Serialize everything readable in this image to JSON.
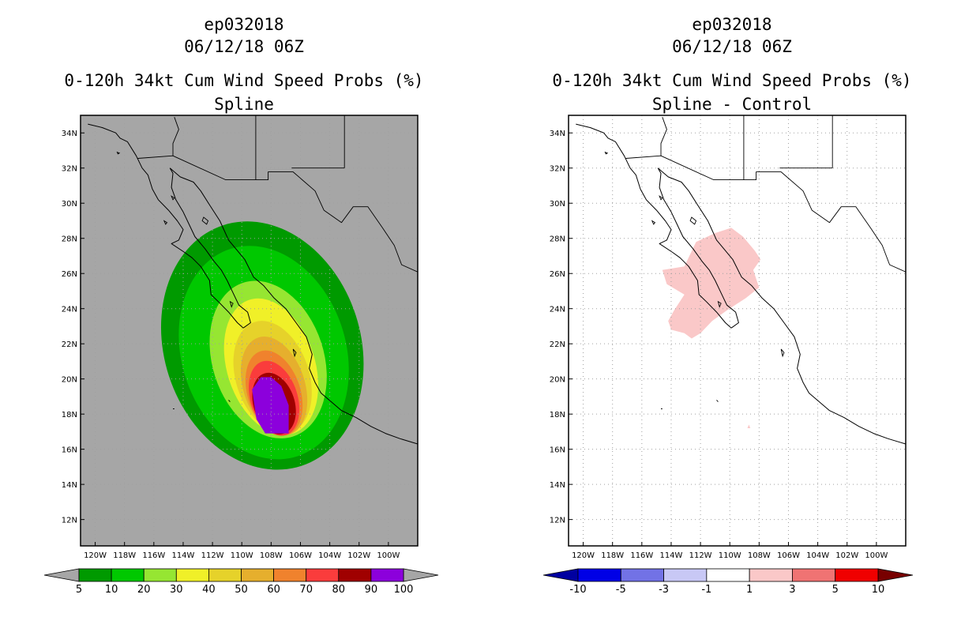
{
  "chart_data": [
    {
      "type": "heatmap",
      "title_lines": [
        "ep032018",
        "06/12/18 06Z",
        "0-120h 34kt Cum Wind Speed Probs (%)",
        "Spline"
      ],
      "xlabel": "",
      "ylabel": "",
      "x_ticks": [
        "120W",
        "118W",
        "116W",
        "114W",
        "112W",
        "110W",
        "108W",
        "106W",
        "104W",
        "102W",
        "100W"
      ],
      "y_ticks": [
        "34N",
        "32N",
        "30N",
        "28N",
        "26N",
        "24N",
        "22N",
        "20N",
        "18N",
        "16N",
        "14N",
        "12N"
      ],
      "xlim": [
        -121,
        -98
      ],
      "ylim": [
        10.5,
        35
      ],
      "grid": true,
      "background_color": "#a6a6a6",
      "colorbar": {
        "labels": [
          "5",
          "10",
          "20",
          "30",
          "40",
          "50",
          "60",
          "70",
          "80",
          "90",
          "100"
        ],
        "colors": [
          "#009a00",
          "#00c800",
          "#96e632",
          "#f0f028",
          "#e6d22a",
          "#e6af2d",
          "#f0822d",
          "#fa3c3c",
          "#a00000",
          "#8c00dc"
        ],
        "arrow_colors": [
          "#a6a6a6",
          "#a6a6a6"
        ]
      },
      "contours": [
        {
          "level": 5,
          "color": "#009a00",
          "center": [
            -108.6,
            21.9
          ],
          "radius": [
            6.7,
            7.2
          ],
          "rotation": -18
        },
        {
          "level": 10,
          "color": "#00c800",
          "center": [
            -108.5,
            21.5
          ],
          "radius": [
            5.6,
            6.2
          ],
          "rotation": -18
        },
        {
          "level": 20,
          "color": "#96e632",
          "center": [
            -108.2,
            21.1
          ],
          "radius": [
            3.8,
            4.6
          ],
          "rotation": -18
        },
        {
          "level": 30,
          "color": "#f0f028",
          "center": [
            -108.0,
            20.7
          ],
          "radius": [
            3.0,
            4.0
          ],
          "rotation": -18
        },
        {
          "level": 40,
          "color": "#e6d22a",
          "center": [
            -107.9,
            20.1
          ],
          "radius": [
            2.5,
            3.3
          ],
          "rotation": -18
        },
        {
          "level": 50,
          "color": "#e6af2d",
          "center": [
            -107.8,
            19.6
          ],
          "radius": [
            2.1,
            2.9
          ],
          "rotation": -18
        },
        {
          "level": 60,
          "color": "#f0822d",
          "center": [
            -107.8,
            19.2
          ],
          "radius": [
            1.8,
            2.5
          ],
          "rotation": -18
        },
        {
          "level": 70,
          "color": "#fa3c3c",
          "center": [
            -107.8,
            18.9
          ],
          "radius": [
            1.6,
            2.2
          ],
          "rotation": -18
        },
        {
          "level": 80,
          "color": "#a00000",
          "center": [
            -107.8,
            18.6
          ],
          "radius": [
            1.4,
            1.8
          ],
          "rotation": -18
        }
      ],
      "core_polygon": {
        "level": 90,
        "color": "#8c00dc",
        "points": [
          [
            -109.3,
            19.4
          ],
          [
            -108.7,
            20.1
          ],
          [
            -108.0,
            20.1
          ],
          [
            -107.3,
            19.6
          ],
          [
            -106.8,
            18.5
          ],
          [
            -106.8,
            16.9
          ],
          [
            -108.4,
            16.9
          ],
          [
            -109.0,
            17.7
          ]
        ]
      }
    },
    {
      "type": "heatmap",
      "title_lines": [
        "ep032018",
        "06/12/18 06Z",
        "0-120h 34kt Cum Wind Speed Probs (%)",
        "Spline - Control"
      ],
      "xlabel": "",
      "ylabel": "",
      "x_ticks": [
        "120W",
        "118W",
        "116W",
        "114W",
        "112W",
        "110W",
        "108W",
        "106W",
        "104W",
        "102W",
        "100W"
      ],
      "y_ticks": [
        "34N",
        "32N",
        "30N",
        "28N",
        "26N",
        "24N",
        "22N",
        "20N",
        "18N",
        "16N",
        "14N",
        "12N"
      ],
      "xlim": [
        -121,
        -98
      ],
      "ylim": [
        10.5,
        35
      ],
      "grid": true,
      "background_color": "#ffffff",
      "colorbar": {
        "labels": [
          "-10",
          "-5",
          "-3",
          "-1",
          "1",
          "3",
          "5",
          "10"
        ],
        "colors": [
          "#0000e6",
          "#7272e6",
          "#c8c8f5",
          "#ffffff",
          "#fac8c8",
          "#f07373",
          "#f00000"
        ],
        "arrow_colors": [
          "#0000a0",
          "#780000"
        ]
      },
      "regions": [
        {
          "range": "1 to 3",
          "color": "#fac8c8",
          "points": [
            [
              -113.1,
              24.8
            ],
            [
              -114.3,
              25.4
            ],
            [
              -114.6,
              26.2
            ],
            [
              -113.1,
              26.4
            ],
            [
              -112.3,
              27.8
            ],
            [
              -111.0,
              28.3
            ],
            [
              -109.9,
              28.6
            ],
            [
              -109.1,
              28.1
            ],
            [
              -108.3,
              27.3
            ],
            [
              -107.9,
              26.8
            ],
            [
              -108.4,
              26.2
            ],
            [
              -108.0,
              25.2
            ],
            [
              -108.9,
              24.6
            ],
            [
              -110.2,
              23.9
            ],
            [
              -111.2,
              23.3
            ],
            [
              -112.0,
              22.6
            ],
            [
              -112.6,
              22.3
            ],
            [
              -113.1,
              22.6
            ],
            [
              -114.0,
              22.8
            ],
            [
              -114.2,
              23.3
            ],
            [
              -113.8,
              23.9
            ]
          ]
        },
        {
          "range": "1 to 3",
          "color": "#fac8c8",
          "points": [
            [
              -108.8,
              17.2
            ],
            [
              -108.7,
              17.4
            ],
            [
              -108.6,
              17.2
            ]
          ]
        }
      ]
    }
  ],
  "colors": {
    "grid": "#a0a0a0",
    "coast": "#000000",
    "border": "#000000",
    "frame": "#000000"
  }
}
